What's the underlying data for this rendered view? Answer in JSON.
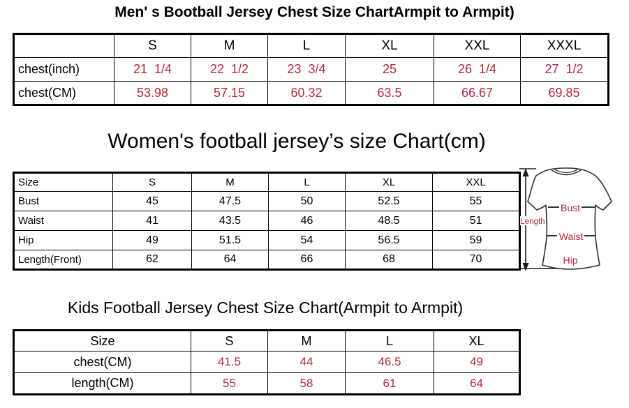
{
  "page": {
    "background": "#ffffff",
    "accent_red": "#B02A3C",
    "text_color": "#000000"
  },
  "tables": [
    {
      "id": "men",
      "title": "Men' s Bootball Jersey Chest Size ChartArmpit to Armpit)",
      "columns": [
        "",
        "S",
        "M",
        "L",
        "XL",
        "XXL",
        "XXXL"
      ],
      "rows": [
        {
          "label": "chest(inch)",
          "values": [
            "21  1/4",
            "22  1/2",
            "23  3/4",
            "25",
            "26  1/4",
            "27  1/2"
          ],
          "value_color": "red"
        },
        {
          "label": "chest(CM)",
          "values": [
            "53.98",
            "57.15",
            "60.32",
            "63.5",
            "66.67",
            "69.85"
          ],
          "value_color": "red"
        }
      ]
    },
    {
      "id": "women",
      "title": "Women's football jersey’s size Chart(cm)",
      "columns": [
        "Size",
        "S",
        "M",
        "L",
        "XL",
        "XXL"
      ],
      "rows": [
        {
          "label": "Bust",
          "values": [
            "45",
            "47.5",
            "50",
            "52.5",
            "55"
          ],
          "value_color": "black"
        },
        {
          "label": "Waist",
          "values": [
            "41",
            "43.5",
            "46",
            "48.5",
            "51"
          ],
          "value_color": "black"
        },
        {
          "label": "Hip",
          "values": [
            "49",
            "51.5",
            "54",
            "56.5",
            "59"
          ],
          "value_color": "black"
        },
        {
          "label": "Length(Front)",
          "values": [
            "62",
            "64",
            "66",
            "68",
            "70"
          ],
          "value_color": "black"
        }
      ]
    },
    {
      "id": "kids",
      "title": "Kids Football Jersey Chest Size Chart(Armpit to Armpit)",
      "columns": [
        "Size",
        "S",
        "M",
        "L",
        "XL"
      ],
      "rows": [
        {
          "label": "chest(CM)",
          "values": [
            "41.5",
            "44",
            "46.5",
            "49"
          ],
          "value_color": "red"
        },
        {
          "label": "length(CM)",
          "values": [
            "55",
            "58",
            "61",
            "64"
          ],
          "value_color": "red"
        }
      ]
    }
  ],
  "diagram": {
    "label_color": "#B02A3C",
    "labels": {
      "length": "Length",
      "bust": "Bust",
      "waist": "Waist",
      "hip": "Hip"
    }
  }
}
